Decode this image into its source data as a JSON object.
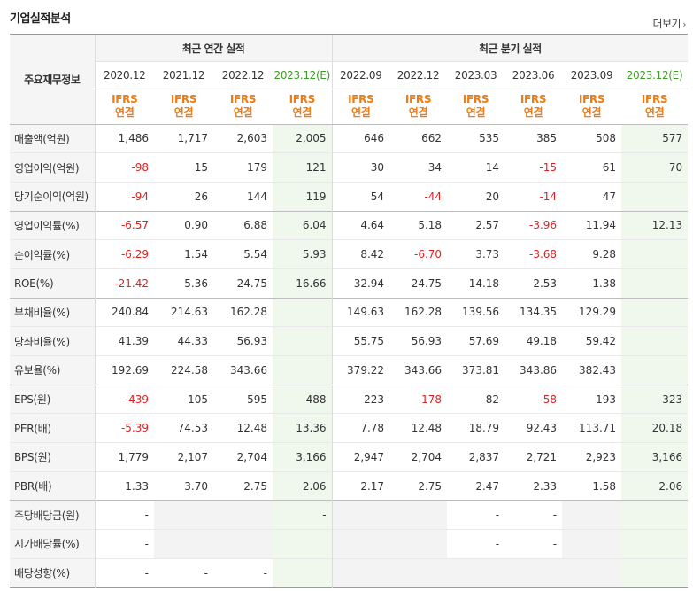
{
  "header": {
    "title": "기업실적분석",
    "more_label": "더보기",
    "more_arrow": "›"
  },
  "table": {
    "row_label_header": "주요재무정보",
    "group_annual": "최근 연간 실적",
    "group_quarterly": "최근 분기 실적",
    "periods": [
      "2020.12",
      "2021.12",
      "2022.12",
      "2023.12(E)",
      "2022.09",
      "2022.12",
      "2023.03",
      "2023.06",
      "2023.09",
      "2023.12(E)"
    ],
    "ifrs_label": "IFRS",
    "consol_label": "연결",
    "rows": [
      {
        "label": "매출액(억원)",
        "values": [
          "1,486",
          "1,717",
          "2,603",
          "2,005",
          "646",
          "662",
          "535",
          "385",
          "508",
          "577"
        ]
      },
      {
        "label": "영업이익(억원)",
        "values": [
          "-98",
          "15",
          "179",
          "121",
          "30",
          "34",
          "14",
          "-15",
          "61",
          "70"
        ]
      },
      {
        "label": "당기순이익(억원)",
        "values": [
          "-94",
          "26",
          "144",
          "119",
          "54",
          "-44",
          "20",
          "-14",
          "47",
          ""
        ]
      },
      {
        "label": "영업이익률(%)",
        "values": [
          "-6.57",
          "0.90",
          "6.88",
          "6.04",
          "4.64",
          "5.18",
          "2.57",
          "-3.96",
          "11.94",
          "12.13"
        ]
      },
      {
        "label": "순이익률(%)",
        "values": [
          "-6.29",
          "1.54",
          "5.54",
          "5.93",
          "8.42",
          "-6.70",
          "3.73",
          "-3.68",
          "9.28",
          ""
        ]
      },
      {
        "label": "ROE(%)",
        "values": [
          "-21.42",
          "5.36",
          "24.75",
          "16.66",
          "32.94",
          "24.75",
          "14.18",
          "2.53",
          "1.38",
          ""
        ]
      },
      {
        "label": "부채비율(%)",
        "values": [
          "240.84",
          "214.63",
          "162.28",
          "",
          "149.63",
          "162.28",
          "139.56",
          "134.35",
          "129.29",
          ""
        ]
      },
      {
        "label": "당좌비율(%)",
        "values": [
          "41.39",
          "44.33",
          "56.93",
          "",
          "55.75",
          "56.93",
          "57.69",
          "49.18",
          "59.42",
          ""
        ]
      },
      {
        "label": "유보율(%)",
        "values": [
          "192.69",
          "224.58",
          "343.66",
          "",
          "379.22",
          "343.66",
          "373.81",
          "343.86",
          "382.43",
          ""
        ]
      },
      {
        "label": "EPS(원)",
        "values": [
          "-439",
          "105",
          "595",
          "488",
          "223",
          "-178",
          "82",
          "-58",
          "193",
          "323"
        ]
      },
      {
        "label": "PER(배)",
        "values": [
          "-5.39",
          "74.53",
          "12.48",
          "13.36",
          "7.78",
          "12.48",
          "18.79",
          "92.43",
          "113.71",
          "20.18"
        ]
      },
      {
        "label": "BPS(원)",
        "values": [
          "1,779",
          "2,107",
          "2,704",
          "3,166",
          "2,947",
          "2,704",
          "2,837",
          "2,721",
          "2,923",
          "3,166"
        ]
      },
      {
        "label": "PBR(배)",
        "values": [
          "1.33",
          "3.70",
          "2.75",
          "2.06",
          "2.17",
          "2.75",
          "2.47",
          "2.33",
          "1.58",
          "2.06"
        ]
      },
      {
        "label": "주당배당금(원)",
        "values": [
          "-",
          "",
          "",
          "-",
          "",
          "",
          "-",
          "-",
          "",
          ""
        ]
      },
      {
        "label": "시가배당률(%)",
        "values": [
          "-",
          "",
          "",
          "",
          "",
          "",
          "-",
          "-",
          "",
          ""
        ]
      },
      {
        "label": "배당성향(%)",
        "values": [
          "-",
          "-",
          "-",
          "",
          "",
          "",
          "",
          "",
          "",
          ""
        ]
      }
    ]
  },
  "colors": {
    "negative": "#e02020",
    "ifrs_orange": "#f07b0f",
    "estimate_green": "#3f9a2a",
    "estimate_bg": "#f0f8ee"
  }
}
